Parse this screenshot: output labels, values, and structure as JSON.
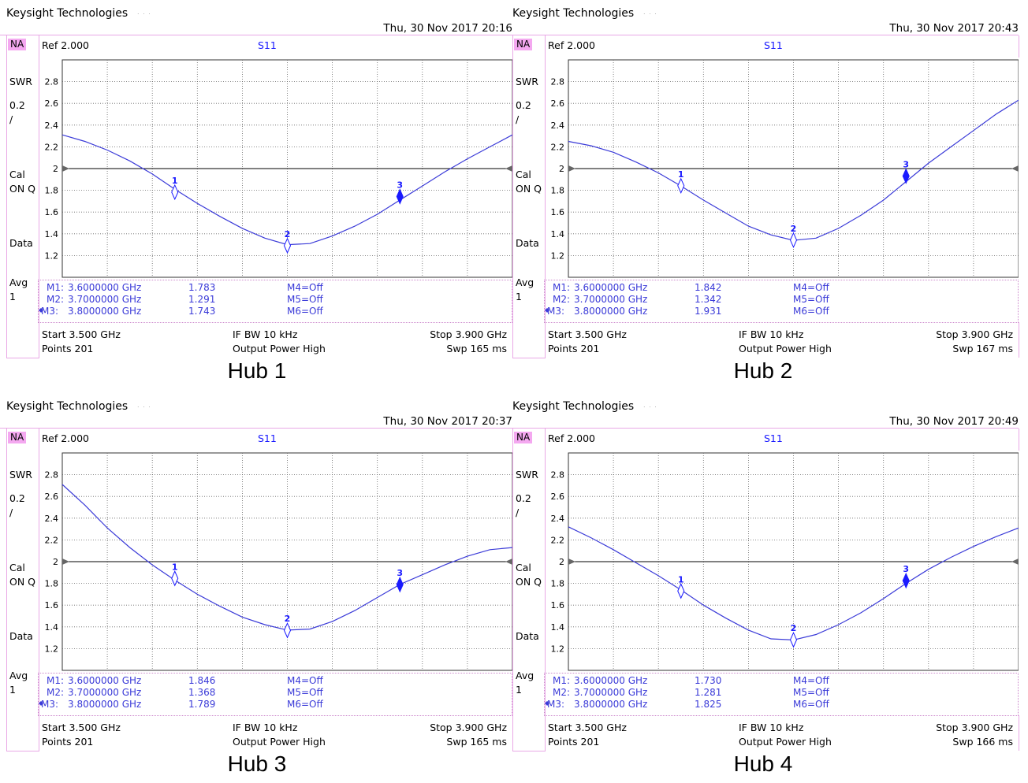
{
  "panels": [
    {
      "brand": "Keysight Technologies",
      "datetime": "Thu, 30 Nov 2017 20:16",
      "na": "NA",
      "side": {
        "swr": "SWR",
        "scale": "0.2",
        "slash": "/",
        "cal": "Cal",
        "onq": "ON Q",
        "data": "Data",
        "avg": "Avg",
        "avg_n": "1"
      },
      "ref": "Ref 2.000",
      "trace": "S11",
      "markers": [
        {
          "label": "M1:",
          "freq": "3.6000000 GHz",
          "value": "1.783",
          "off": "M4=Off"
        },
        {
          "label": "M2:",
          "freq": "3.7000000 GHz",
          "value": "1.291",
          "off": "M5=Off"
        },
        {
          "label": "M3:",
          "freq": "3.8000000 GHz",
          "value": "1.743",
          "off": "M6=Off"
        }
      ],
      "start": "Start 3.500 GHz",
      "ifbw": "IF BW 10 kHz",
      "stop": "Stop 3.900 GHz",
      "points": "Points 201",
      "power": "Output Power High",
      "swp": "Swp 165 ms",
      "title": "Hub 1"
    },
    {
      "brand": "Keysight Technologies",
      "datetime": "Thu, 30 Nov 2017 20:43",
      "na": "NA",
      "side": {
        "swr": "SWR",
        "scale": "0.2",
        "slash": "/",
        "cal": "Cal",
        "onq": "ON Q",
        "data": "Data",
        "avg": "Avg",
        "avg_n": "1"
      },
      "ref": "Ref 2.000",
      "trace": "S11",
      "markers": [
        {
          "label": "M1:",
          "freq": "3.6000000 GHz",
          "value": "1.842",
          "off": "M4=Off"
        },
        {
          "label": "M2:",
          "freq": "3.7000000 GHz",
          "value": "1.342",
          "off": "M5=Off"
        },
        {
          "label": "M3:",
          "freq": "3.8000000 GHz",
          "value": "1.931",
          "off": "M6=Off"
        }
      ],
      "start": "Start 3.500 GHz",
      "ifbw": "IF BW 10 kHz",
      "stop": "Stop 3.900 GHz",
      "points": "Points 201",
      "power": "Output Power High",
      "swp": "Swp 167 ms",
      "title": "Hub 2"
    },
    {
      "brand": "Keysight Technologies",
      "datetime": "Thu, 30 Nov 2017 20:37",
      "na": "NA",
      "side": {
        "swr": "SWR",
        "scale": "0.2",
        "slash": "/",
        "cal": "Cal",
        "onq": "ON Q",
        "data": "Data",
        "avg": "Avg",
        "avg_n": "1"
      },
      "ref": "Ref 2.000",
      "trace": "S11",
      "markers": [
        {
          "label": "M1:",
          "freq": "3.6000000 GHz",
          "value": "1.846",
          "off": "M4=Off"
        },
        {
          "label": "M2:",
          "freq": "3.7000000 GHz",
          "value": "1.368",
          "off": "M5=Off"
        },
        {
          "label": "M3:",
          "freq": "3.8000000 GHz",
          "value": "1.789",
          "off": "M6=Off"
        }
      ],
      "start": "Start 3.500 GHz",
      "ifbw": "IF BW 10 kHz",
      "stop": "Stop 3.900 GHz",
      "points": "Points 201",
      "power": "Output Power High",
      "swp": "Swp 165 ms",
      "title": "Hub 3"
    },
    {
      "brand": "Keysight Technologies",
      "datetime": "Thu, 30 Nov 2017 20:49",
      "na": "NA",
      "side": {
        "swr": "SWR",
        "scale": "0.2",
        "slash": "/",
        "cal": "Cal",
        "onq": "ON Q",
        "data": "Data",
        "avg": "Avg",
        "avg_n": "1"
      },
      "ref": "Ref 2.000",
      "trace": "S11",
      "markers": [
        {
          "label": "M1:",
          "freq": "3.6000000 GHz",
          "value": "1.730",
          "off": "M4=Off"
        },
        {
          "label": "M2:",
          "freq": "3.7000000 GHz",
          "value": "1.281",
          "off": "M5=Off"
        },
        {
          "label": "M3:",
          "freq": "3.8000000 GHz",
          "value": "1.825",
          "off": "M6=Off"
        }
      ],
      "start": "Start 3.500 GHz",
      "ifbw": "IF BW 10 kHz",
      "stop": "Stop 3.900 GHz",
      "points": "Points 201",
      "power": "Output Power High",
      "swp": "Swp 166 ms",
      "title": "Hub 4"
    }
  ],
  "colors": {
    "trace": "#3b3bd8",
    "frame": "#e9a8e6",
    "grid": "#666666",
    "ref_line": "#000000"
  },
  "chart_data": [
    {
      "type": "line",
      "title": "Hub 1",
      "ylim": [
        1.0,
        3.0
      ],
      "yticks": [
        "2.8",
        "2.6",
        "2.4",
        "2.2",
        "2",
        "1.8",
        "1.6",
        "1.4",
        "1.2"
      ],
      "xlim": [
        3.5,
        3.9
      ],
      "grid": true,
      "reference": 2.0,
      "series": [
        {
          "name": "S11",
          "x": [
            3.5,
            3.52,
            3.54,
            3.56,
            3.58,
            3.6,
            3.62,
            3.64,
            3.66,
            3.68,
            3.7,
            3.72,
            3.74,
            3.76,
            3.78,
            3.8,
            3.82,
            3.84,
            3.86,
            3.88,
            3.9
          ],
          "y": [
            2.31,
            2.25,
            2.17,
            2.07,
            1.95,
            1.81,
            1.68,
            1.56,
            1.45,
            1.36,
            1.3,
            1.31,
            1.38,
            1.47,
            1.58,
            1.71,
            1.84,
            1.97,
            2.09,
            2.2,
            2.31
          ]
        }
      ],
      "markers": [
        {
          "id": "1",
          "x": 3.6,
          "y": 1.783
        },
        {
          "id": "2",
          "x": 3.7,
          "y": 1.291
        },
        {
          "id": "3",
          "x": 3.8,
          "y": 1.743,
          "active": true
        }
      ]
    },
    {
      "type": "line",
      "title": "Hub 2",
      "ylim": [
        1.0,
        3.0
      ],
      "yticks": [
        "2.8",
        "2.6",
        "2.4",
        "2.2",
        "2",
        "1.8",
        "1.6",
        "1.4",
        "1.2"
      ],
      "xlim": [
        3.5,
        3.9
      ],
      "grid": true,
      "reference": 2.0,
      "series": [
        {
          "name": "S11",
          "x": [
            3.5,
            3.52,
            3.54,
            3.56,
            3.58,
            3.6,
            3.62,
            3.64,
            3.66,
            3.68,
            3.7,
            3.72,
            3.74,
            3.76,
            3.78,
            3.8,
            3.82,
            3.84,
            3.86,
            3.88,
            3.9
          ],
          "y": [
            2.25,
            2.21,
            2.15,
            2.06,
            1.96,
            1.84,
            1.71,
            1.59,
            1.47,
            1.39,
            1.34,
            1.36,
            1.45,
            1.57,
            1.71,
            1.88,
            2.05,
            2.2,
            2.35,
            2.5,
            2.63
          ]
        }
      ],
      "markers": [
        {
          "id": "1",
          "x": 3.6,
          "y": 1.842
        },
        {
          "id": "2",
          "x": 3.7,
          "y": 1.342
        },
        {
          "id": "3",
          "x": 3.8,
          "y": 1.931,
          "active": true
        }
      ]
    },
    {
      "type": "line",
      "title": "Hub 3",
      "ylim": [
        1.0,
        3.0
      ],
      "yticks": [
        "2.8",
        "2.6",
        "2.4",
        "2.2",
        "2",
        "1.8",
        "1.6",
        "1.4",
        "1.2"
      ],
      "xlim": [
        3.5,
        3.9
      ],
      "grid": true,
      "reference": 2.0,
      "series": [
        {
          "name": "S11",
          "x": [
            3.5,
            3.52,
            3.54,
            3.56,
            3.58,
            3.6,
            3.62,
            3.64,
            3.66,
            3.68,
            3.7,
            3.72,
            3.74,
            3.76,
            3.78,
            3.8,
            3.82,
            3.84,
            3.86,
            3.88,
            3.9
          ],
          "y": [
            2.71,
            2.52,
            2.31,
            2.13,
            1.97,
            1.83,
            1.7,
            1.59,
            1.49,
            1.42,
            1.37,
            1.38,
            1.45,
            1.55,
            1.67,
            1.79,
            1.88,
            1.97,
            2.05,
            2.11,
            2.13
          ]
        }
      ],
      "markers": [
        {
          "id": "1",
          "x": 3.6,
          "y": 1.846
        },
        {
          "id": "2",
          "x": 3.7,
          "y": 1.368
        },
        {
          "id": "3",
          "x": 3.8,
          "y": 1.789,
          "active": true
        }
      ]
    },
    {
      "type": "line",
      "title": "Hub 4",
      "ylim": [
        1.0,
        3.0
      ],
      "yticks": [
        "2.8",
        "2.6",
        "2.4",
        "2.2",
        "2",
        "1.8",
        "1.6",
        "1.4",
        "1.2"
      ],
      "xlim": [
        3.5,
        3.9
      ],
      "grid": true,
      "reference": 2.0,
      "series": [
        {
          "name": "S11",
          "x": [
            3.5,
            3.52,
            3.54,
            3.56,
            3.58,
            3.6,
            3.62,
            3.64,
            3.66,
            3.68,
            3.7,
            3.72,
            3.74,
            3.76,
            3.78,
            3.8,
            3.82,
            3.84,
            3.86,
            3.88,
            3.9
          ],
          "y": [
            2.32,
            2.22,
            2.11,
            1.99,
            1.87,
            1.74,
            1.6,
            1.48,
            1.37,
            1.29,
            1.28,
            1.33,
            1.42,
            1.53,
            1.66,
            1.8,
            1.93,
            2.04,
            2.14,
            2.23,
            2.31
          ]
        }
      ],
      "markers": [
        {
          "id": "1",
          "x": 3.6,
          "y": 1.73
        },
        {
          "id": "2",
          "x": 3.7,
          "y": 1.281
        },
        {
          "id": "3",
          "x": 3.8,
          "y": 1.825,
          "active": true
        }
      ]
    }
  ]
}
